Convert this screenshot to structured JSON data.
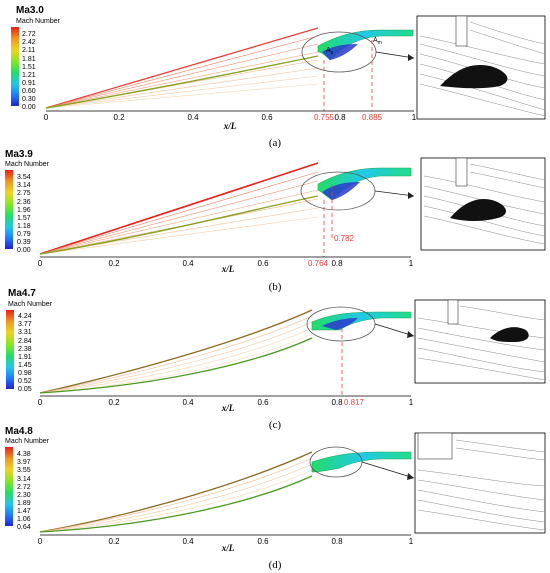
{
  "axis_label": "x/L",
  "legend_title": "Mach Number",
  "x_ticks": [
    "0",
    "0.2",
    "0.4",
    "0.6",
    "0.8",
    "1"
  ],
  "colors": {
    "marker_line": "#e8403a",
    "marker_text": "#e8403a",
    "contour_lines": "#e89a6a",
    "frame": "#000000",
    "colormap": [
      "#2222cc",
      "#1f7dff",
      "#22c8e8",
      "#22dd66",
      "#88e822",
      "#eed422",
      "#f09a22",
      "#e8201a"
    ]
  },
  "panels": [
    {
      "case": "Ma3.0",
      "caption": "(a)",
      "legend_values": [
        "2.72",
        "2.42",
        "2.11",
        "1.81",
        "1.51",
        "1.21",
        "0.91",
        "0.60",
        "0.30",
        "0.00"
      ],
      "separation_x": [
        0.755,
        0.885
      ],
      "separation_labels": [
        "0.755",
        "0.885"
      ],
      "point_labels": [
        "A",
        "A"
      ],
      "point_subscripts": [
        "s",
        "m"
      ]
    },
    {
      "case": "Ma3.9",
      "caption": "(b)",
      "legend_values": [
        "3.54",
        "3.14",
        "2.75",
        "2.36",
        "1.96",
        "1.57",
        "1.18",
        "0.79",
        "0.39",
        "0.00"
      ],
      "separation_x": [
        0.764,
        0.782
      ],
      "separation_labels": [
        "0.764",
        "0.782"
      ],
      "point_labels": [],
      "point_subscripts": []
    },
    {
      "case": "Ma4.7",
      "caption": "(c)",
      "legend_values": [
        "4.24",
        "3.77",
        "3.31",
        "2.84",
        "2.38",
        "1.91",
        "1.45",
        "0.98",
        "0.52",
        "0.05"
      ],
      "separation_x": [
        0.817
      ],
      "separation_labels": [
        "0.817"
      ],
      "point_labels": [],
      "point_subscripts": []
    },
    {
      "case": "Ma4.8",
      "caption": "(d)",
      "legend_values": [
        "4.38",
        "3.97",
        "3.55",
        "3.14",
        "2.72",
        "2.30",
        "1.89",
        "1.47",
        "1.06",
        "0.64"
      ],
      "separation_x": [],
      "separation_labels": [],
      "point_labels": [],
      "point_subscripts": []
    }
  ]
}
